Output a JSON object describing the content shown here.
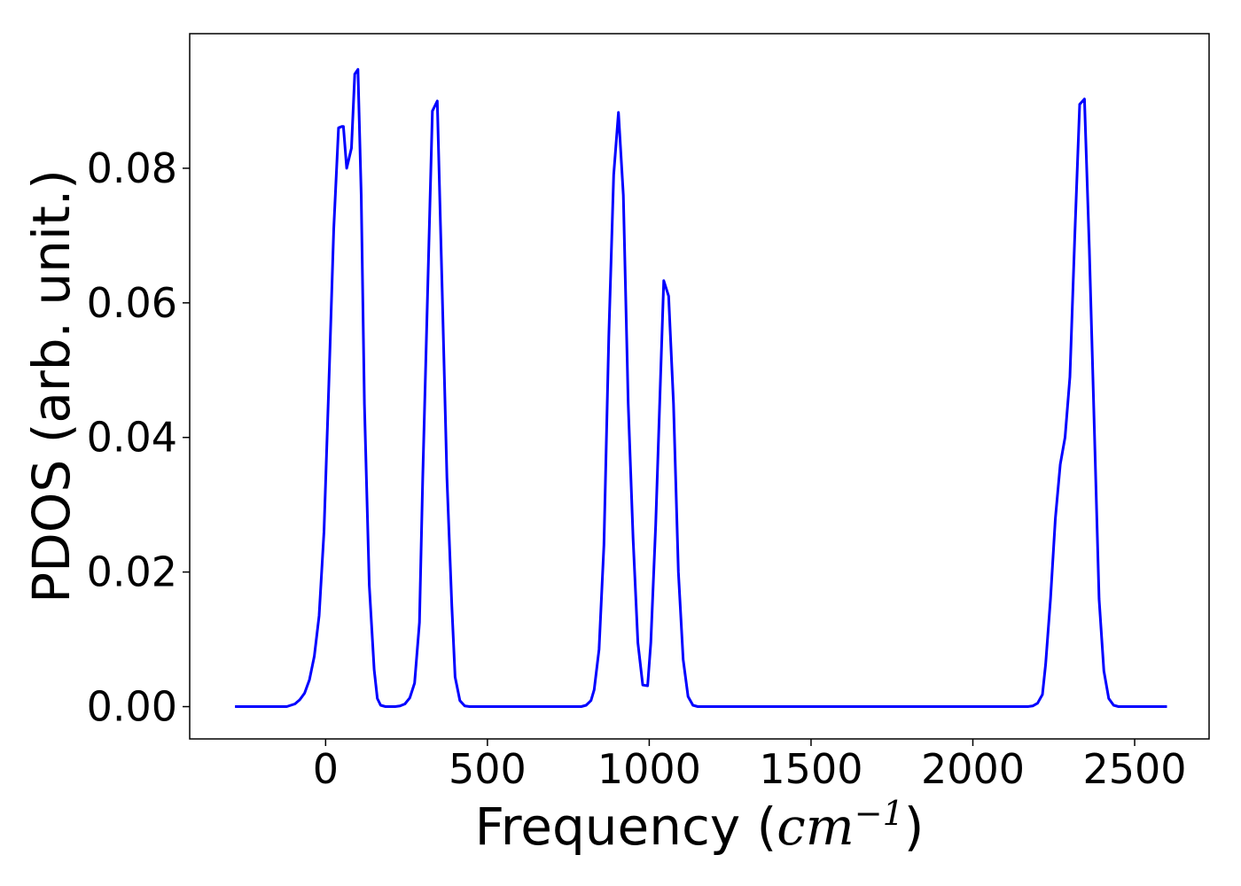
{
  "chart_data": {
    "type": "line",
    "title": "",
    "xlabel": "Frequency",
    "xlabel_unit": "cm",
    "xlabel_unit_exp": "−1",
    "ylabel": "PDOS (arb. unit.)",
    "xlim": [
      -420,
      2730
    ],
    "ylim": [
      -0.0048,
      0.1
    ],
    "xticks": [
      0,
      500,
      1000,
      1500,
      2000,
      2500
    ],
    "xtick_labels": [
      "0",
      "500",
      "1000",
      "1500",
      "2000",
      "2500"
    ],
    "yticks": [
      0.0,
      0.02,
      0.04,
      0.06,
      0.08
    ],
    "ytick_labels": [
      "0.00",
      "0.02",
      "0.04",
      "0.06",
      "0.08"
    ],
    "grid": false,
    "legend": "none",
    "series": [
      {
        "color": "#0000ff",
        "x": [
          -280,
          -200,
          -120,
          -95,
          -80,
          -65,
          -50,
          -35,
          -20,
          -5,
          10,
          25,
          40,
          50,
          55,
          65,
          80,
          90,
          100,
          110,
          120,
          135,
          150,
          160,
          170,
          185,
          200,
          215,
          230,
          245,
          260,
          275,
          290,
          300,
          315,
          330,
          345,
          360,
          375,
          390,
          400,
          415,
          430,
          445,
          460,
          475,
          490,
          600,
          700,
          790,
          805,
          820,
          830,
          845,
          860,
          875,
          890,
          905,
          920,
          935,
          950,
          965,
          980,
          995,
          1005,
          1020,
          1035,
          1045,
          1060,
          1075,
          1090,
          1105,
          1120,
          1135,
          1150,
          1300,
          1600,
          1900,
          2150,
          2170,
          2185,
          2200,
          2215,
          2225,
          2240,
          2255,
          2270,
          2285,
          2300,
          2315,
          2330,
          2345,
          2360,
          2375,
          2390,
          2405,
          2420,
          2435,
          2450,
          2600
        ],
        "y": [
          0,
          0,
          0,
          0.0004,
          0.001,
          0.002,
          0.004,
          0.0075,
          0.0135,
          0.026,
          0.048,
          0.071,
          0.086,
          0.0862,
          0.0862,
          0.08,
          0.083,
          0.094,
          0.0947,
          0.076,
          0.045,
          0.018,
          0.0055,
          0.0012,
          0.0002,
          0,
          0,
          0,
          0.0001,
          0.0004,
          0.0013,
          0.0035,
          0.0125,
          0.034,
          0.061,
          0.0885,
          0.09,
          0.062,
          0.034,
          0.015,
          0.0044,
          0.0009,
          0.0001,
          0,
          0,
          0,
          0,
          0,
          0,
          0,
          0.0002,
          0.0009,
          0.0025,
          0.0085,
          0.024,
          0.055,
          0.079,
          0.0883,
          0.076,
          0.045,
          0.025,
          0.0095,
          0.0032,
          0.0031,
          0.0095,
          0.027,
          0.049,
          0.0633,
          0.061,
          0.045,
          0.02,
          0.007,
          0.0015,
          0.0002,
          0,
          0,
          0,
          0,
          0,
          0,
          0.0001,
          0.0005,
          0.0018,
          0.0063,
          0.016,
          0.028,
          0.036,
          0.04,
          0.049,
          0.07,
          0.0895,
          0.0903,
          0.068,
          0.042,
          0.016,
          0.0053,
          0.0012,
          0.0002,
          0,
          0
        ]
      }
    ]
  }
}
